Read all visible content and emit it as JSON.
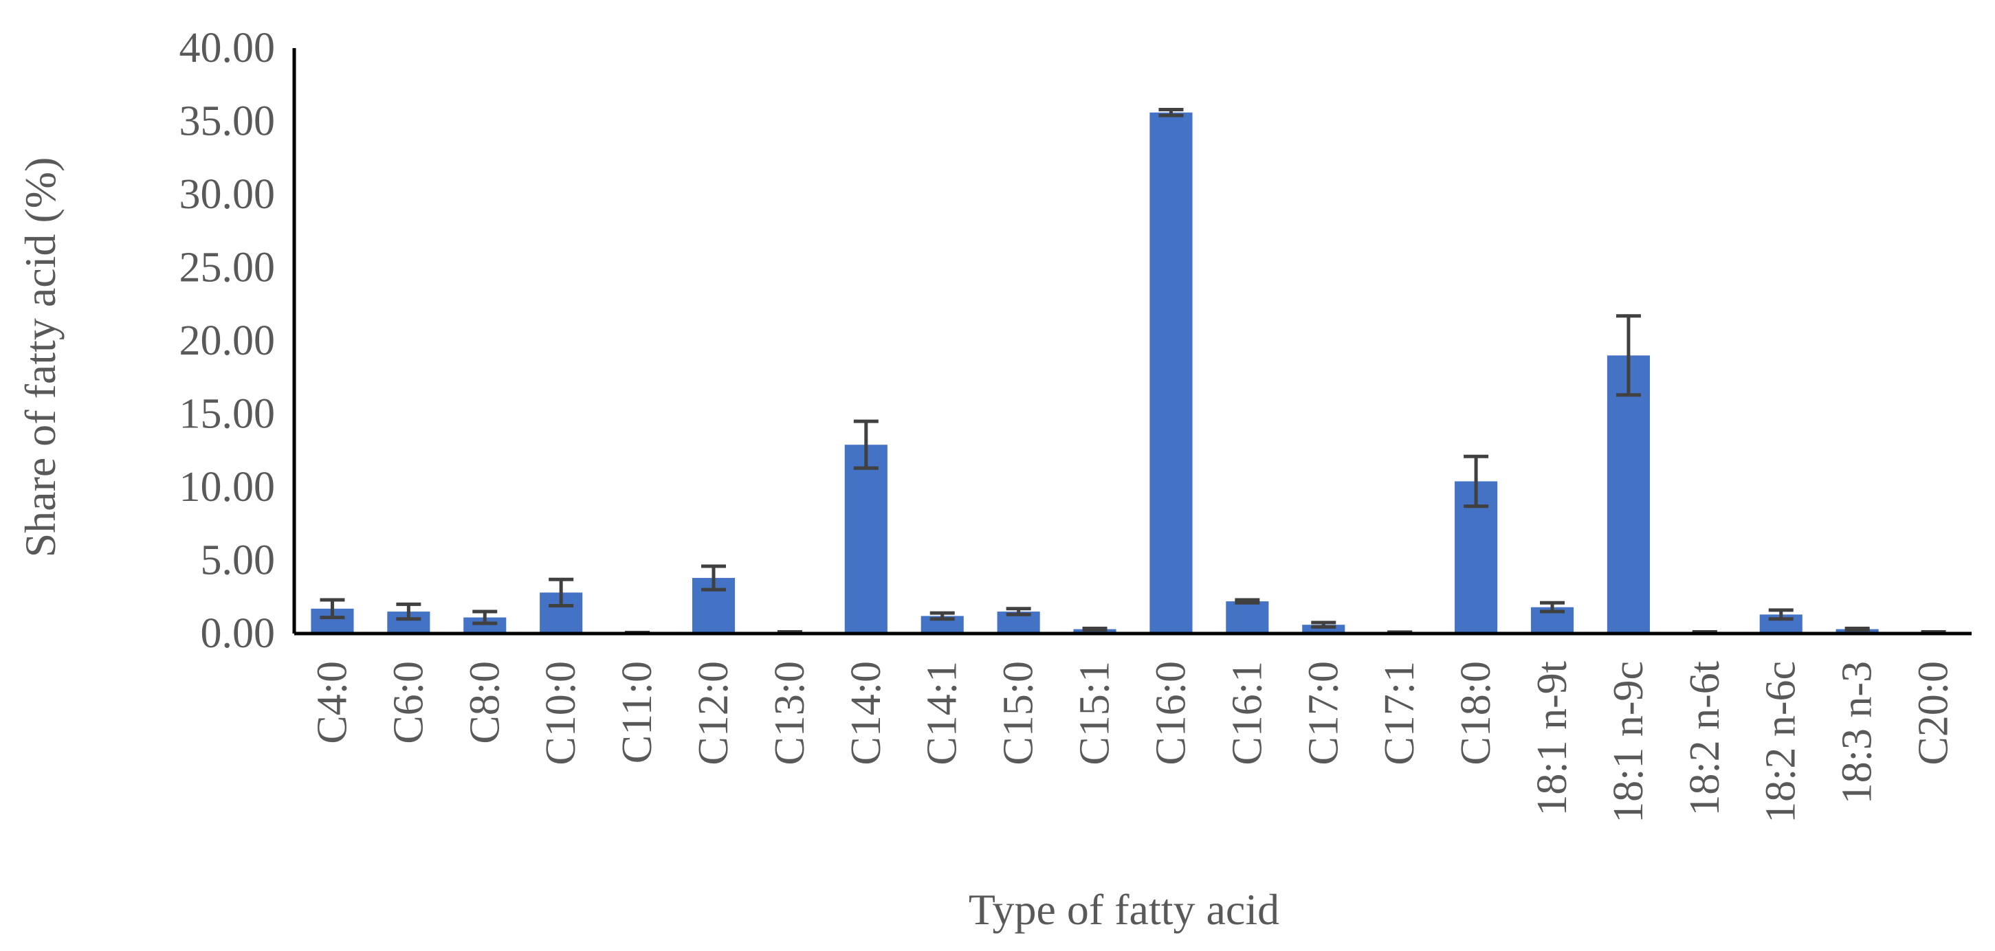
{
  "chart_data": {
    "type": "bar",
    "title": "",
    "xlabel": "Type of fatty acid",
    "ylabel": "Share of fatty acid (%)",
    "ylim": [
      0,
      40
    ],
    "y_ticks": [
      "0.00",
      "5.00",
      "10.00",
      "15.00",
      "20.00",
      "25.00",
      "30.00",
      "35.00",
      "40.00"
    ],
    "grid": false,
    "legend": "none",
    "bar_color": "#4472C4",
    "error_bar_color": "#404040",
    "categories": [
      "C4:0",
      "C6:0",
      "C8:0",
      "C10:0",
      "C11:0",
      "C12:0",
      "C13:0",
      "C14:0",
      "C14:1",
      "C15:0",
      "C15:1",
      "C16:0",
      "C16:1",
      "C17:0",
      "C17:1",
      "C18:0",
      "18:1 n-9t",
      "18:1 n-9c",
      "18:2 n-6t",
      "18:2 n-6c",
      "18:3 n-3",
      "C20:0"
    ],
    "values": [
      1.7,
      1.5,
      1.1,
      2.8,
      0.05,
      3.8,
      0.1,
      12.9,
      1.2,
      1.5,
      0.3,
      35.6,
      2.2,
      0.6,
      0.08,
      10.4,
      1.8,
      19.0,
      0.1,
      1.3,
      0.3,
      0.1
    ],
    "errors": [
      0.6,
      0.5,
      0.4,
      0.9,
      0.02,
      0.8,
      0.02,
      1.6,
      0.2,
      0.2,
      0.05,
      0.2,
      0.1,
      0.15,
      0.02,
      1.7,
      0.3,
      2.7,
      0.02,
      0.3,
      0.05,
      0.02
    ]
  }
}
